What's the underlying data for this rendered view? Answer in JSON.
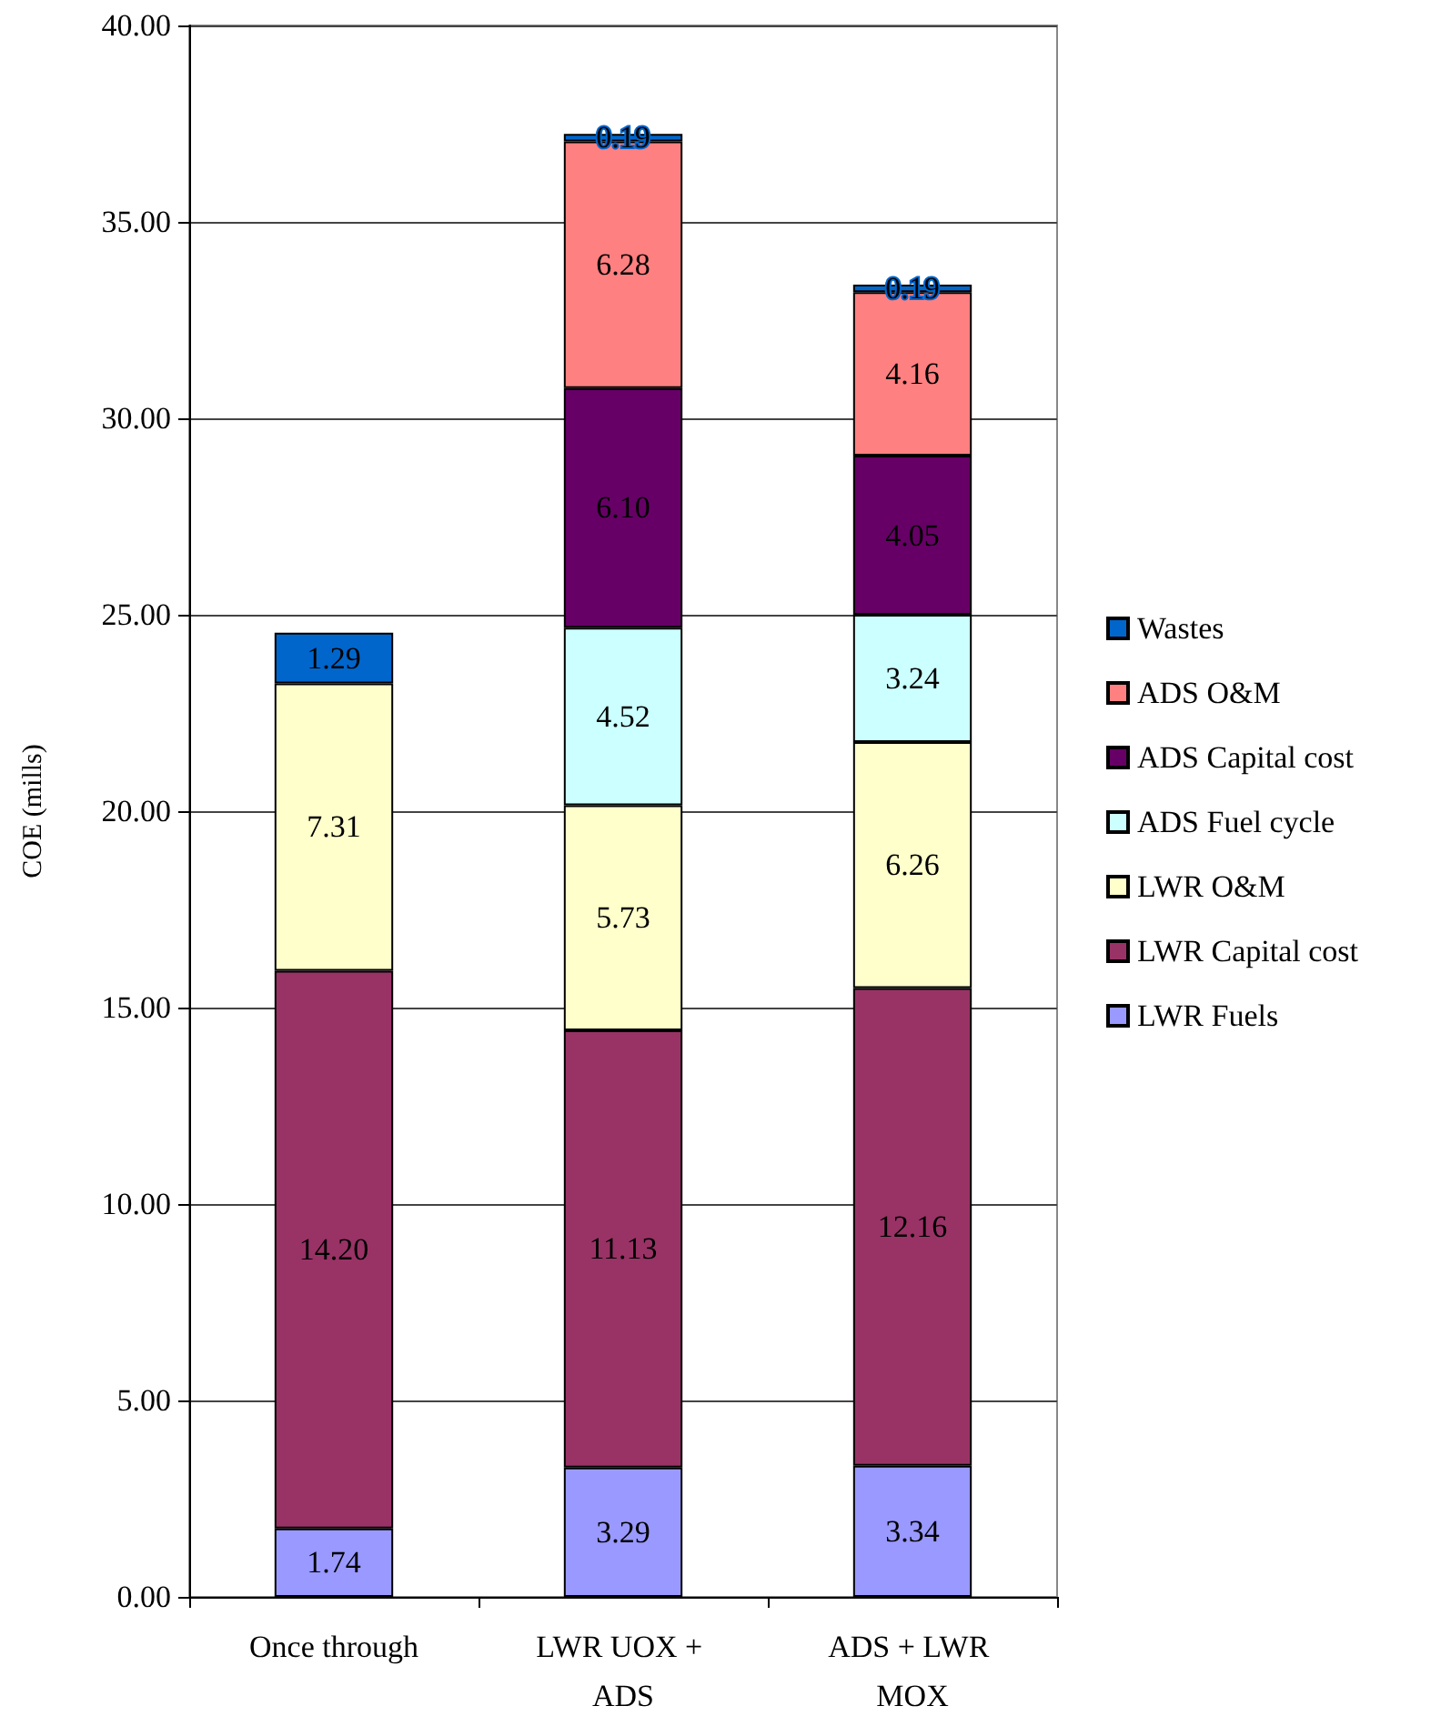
{
  "chart_data": {
    "type": "bar",
    "stacked": true,
    "ylabel": "COE (mills)",
    "categories": [
      "Once through",
      "LWR UOX + ADS",
      "ADS + LWR MOX"
    ],
    "series": [
      {
        "name": "LWR Fuels",
        "color": "#9999ff",
        "values": [
          1.74,
          3.29,
          3.34
        ],
        "value_labels": [
          "1.74",
          "3.29",
          "3.34"
        ]
      },
      {
        "name": "LWR Capital cost",
        "color": "#993366",
        "values": [
          14.2,
          11.13,
          12.16
        ],
        "value_labels": [
          "14.20",
          "11.13",
          "12.16"
        ]
      },
      {
        "name": "LWR O&M",
        "color": "#ffffcc",
        "values": [
          7.31,
          5.73,
          6.26
        ],
        "value_labels": [
          "7.31",
          "5.73",
          "6.26"
        ]
      },
      {
        "name": "ADS Fuel cycle",
        "color": "#ccffff",
        "values": [
          null,
          4.52,
          3.24
        ],
        "value_labels": [
          null,
          "4.52",
          "3.24"
        ]
      },
      {
        "name": "ADS Capital cost",
        "color": "#660066",
        "values": [
          null,
          6.1,
          4.05
        ],
        "value_labels": [
          null,
          "6.10",
          "4.05"
        ]
      },
      {
        "name": "ADS O&M",
        "color": "#ff8080",
        "values": [
          null,
          6.28,
          4.16
        ],
        "value_labels": [
          null,
          "6.28",
          "4.16"
        ]
      },
      {
        "name": "Wastes",
        "color": "#0066cc",
        "values": [
          1.29,
          0.19,
          0.19
        ],
        "value_labels": [
          "1.29",
          "0.19",
          "0.19"
        ]
      }
    ],
    "ylim": [
      0,
      40
    ],
    "yticks": [
      {
        "value": 0,
        "label": "0.00"
      },
      {
        "value": 5,
        "label": "5.00"
      },
      {
        "value": 10,
        "label": "10.00"
      },
      {
        "value": 15,
        "label": "15.00"
      },
      {
        "value": 20,
        "label": "20.00"
      },
      {
        "value": 25,
        "label": "25.00"
      },
      {
        "value": 30,
        "label": "30.00"
      },
      {
        "value": 35,
        "label": "35.00"
      },
      {
        "value": 40,
        "label": "40.00"
      }
    ],
    "grid": "y",
    "legend": "right"
  }
}
